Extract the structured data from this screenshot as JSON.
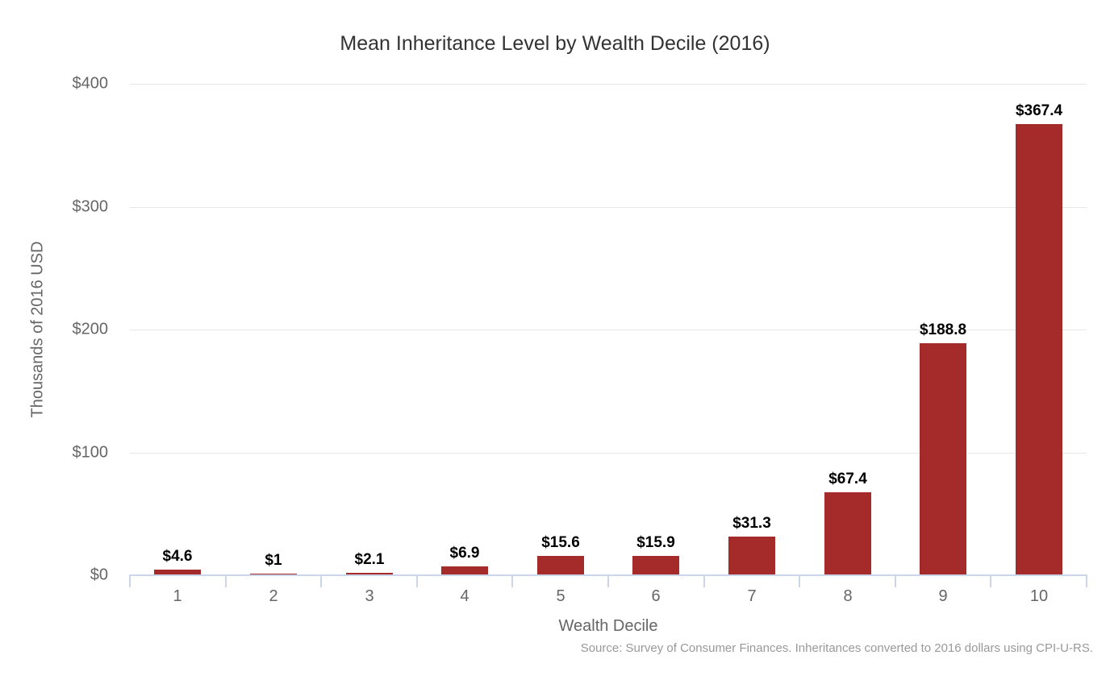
{
  "chart_data": {
    "type": "bar",
    "title": "Mean Inheritance Level by Wealth Decile (2016)",
    "xlabel": "Wealth Decile",
    "ylabel": "Thousands of 2016 USD",
    "credits": "Source: Survey of Consumer Finances. Inheritances converted to 2016 dollars using CPI-U-RS.",
    "categories": [
      "1",
      "2",
      "3",
      "4",
      "5",
      "6",
      "7",
      "8",
      "9",
      "10"
    ],
    "values": [
      4.6,
      1,
      2.1,
      6.9,
      15.6,
      15.9,
      31.3,
      67.4,
      188.8,
      367.4
    ],
    "data_labels": [
      "$4.6",
      "$1",
      "$2.1",
      "$6.9",
      "$15.6",
      "$15.9",
      "$31.3",
      "$67.4",
      "$188.8",
      "$367.4"
    ],
    "ylim": [
      0,
      400
    ],
    "yticks": [
      {
        "value": 0,
        "label": "$0"
      },
      {
        "value": 100,
        "label": "$100"
      },
      {
        "value": 200,
        "label": "$200"
      },
      {
        "value": 300,
        "label": "$300"
      },
      {
        "value": 400,
        "label": "$400"
      }
    ],
    "grid": "horizontal",
    "legend": "none",
    "colors": {
      "bar": "#a52a2a",
      "gridline": "#e6e6e6",
      "axis_line": "#ccd6eb",
      "title_text": "#333333",
      "axis_text": "#666666",
      "data_label_text": "#000000",
      "credits_text": "#999999"
    }
  }
}
